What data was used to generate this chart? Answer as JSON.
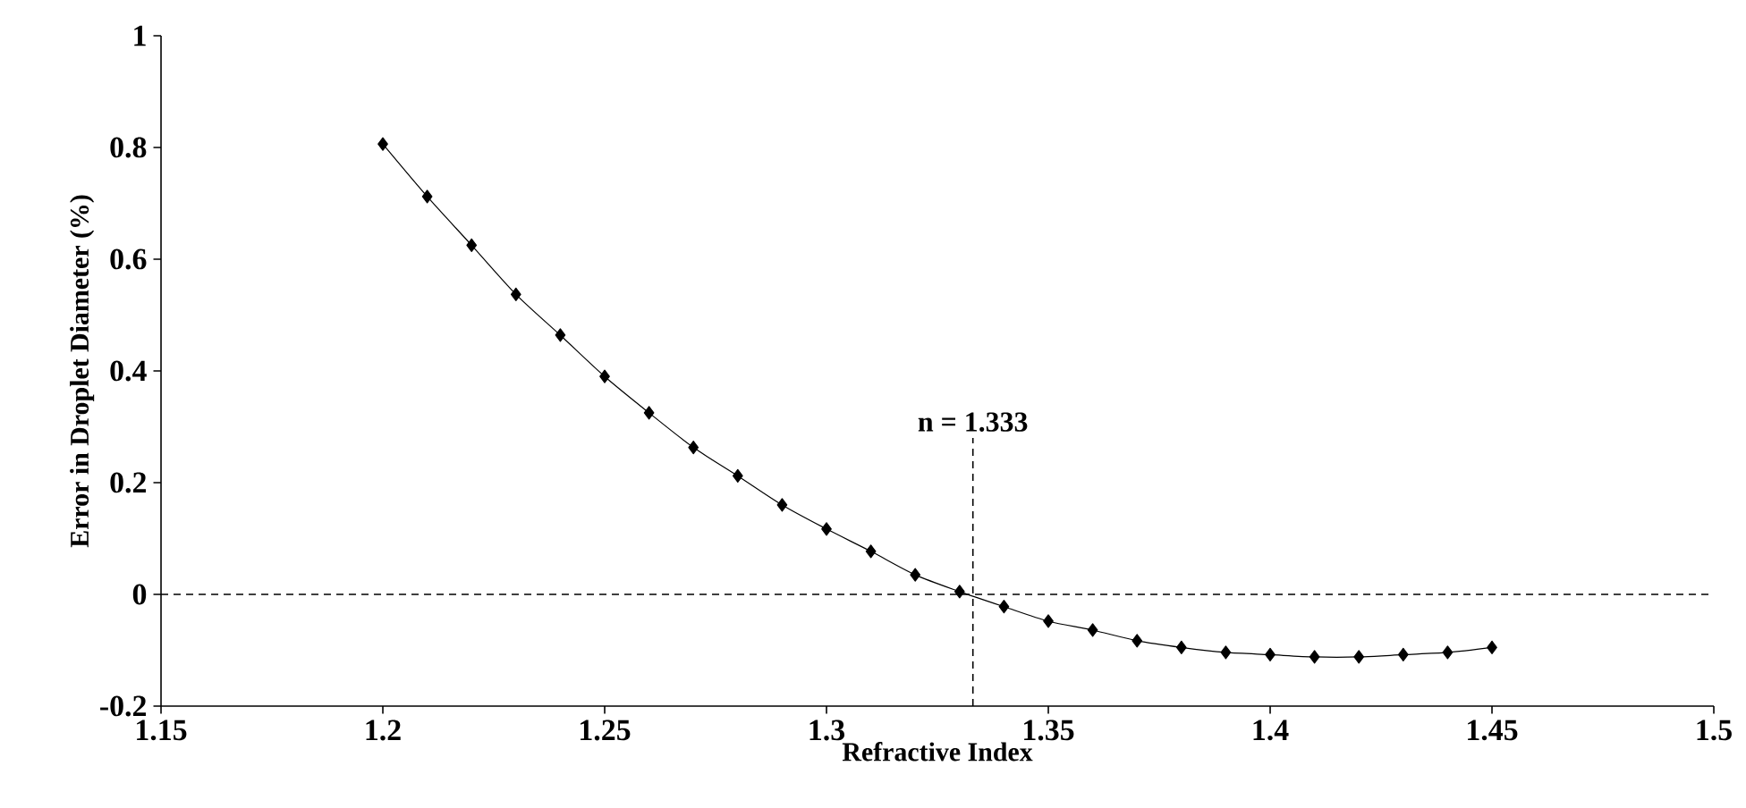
{
  "chart_data": {
    "type": "line",
    "xlabel": "Refractive Index",
    "ylabel": "Error in Droplet Diameter (%)",
    "x": [
      1.2,
      1.21,
      1.22,
      1.23,
      1.24,
      1.25,
      1.26,
      1.27,
      1.28,
      1.29,
      1.3,
      1.31,
      1.32,
      1.33,
      1.34,
      1.35,
      1.36,
      1.37,
      1.38,
      1.39,
      1.4,
      1.41,
      1.42,
      1.43,
      1.44,
      1.45
    ],
    "series": [
      {
        "color": "#000000",
        "values": [
          0.806,
          0.712,
          0.625,
          0.537,
          0.464,
          0.39,
          0.325,
          0.263,
          0.212,
          0.16,
          0.117,
          0.077,
          0.035,
          0.005,
          -0.022,
          -0.048,
          -0.064,
          -0.083,
          -0.095,
          -0.104,
          -0.108,
          -0.112,
          -0.112,
          -0.108,
          -0.104,
          -0.095
        ]
      }
    ],
    "xlim": [
      1.15,
      1.5
    ],
    "xticks": [
      1.15,
      1.2,
      1.25,
      1.3,
      1.35,
      1.4,
      1.45,
      1.5
    ],
    "ylim": [
      -0.2,
      1
    ],
    "yticks": [
      -0.2,
      0,
      0.2,
      0.4,
      0.6,
      0.8,
      1
    ],
    "ref_lines": [
      {
        "axis": "y",
        "value": 0,
        "line_style": "dashed"
      },
      {
        "axis": "x",
        "value": 1.333,
        "label": "n = 1.333",
        "line_style": "dashed"
      }
    ],
    "grid": false,
    "marker": "diamond",
    "line_style": "solid"
  }
}
